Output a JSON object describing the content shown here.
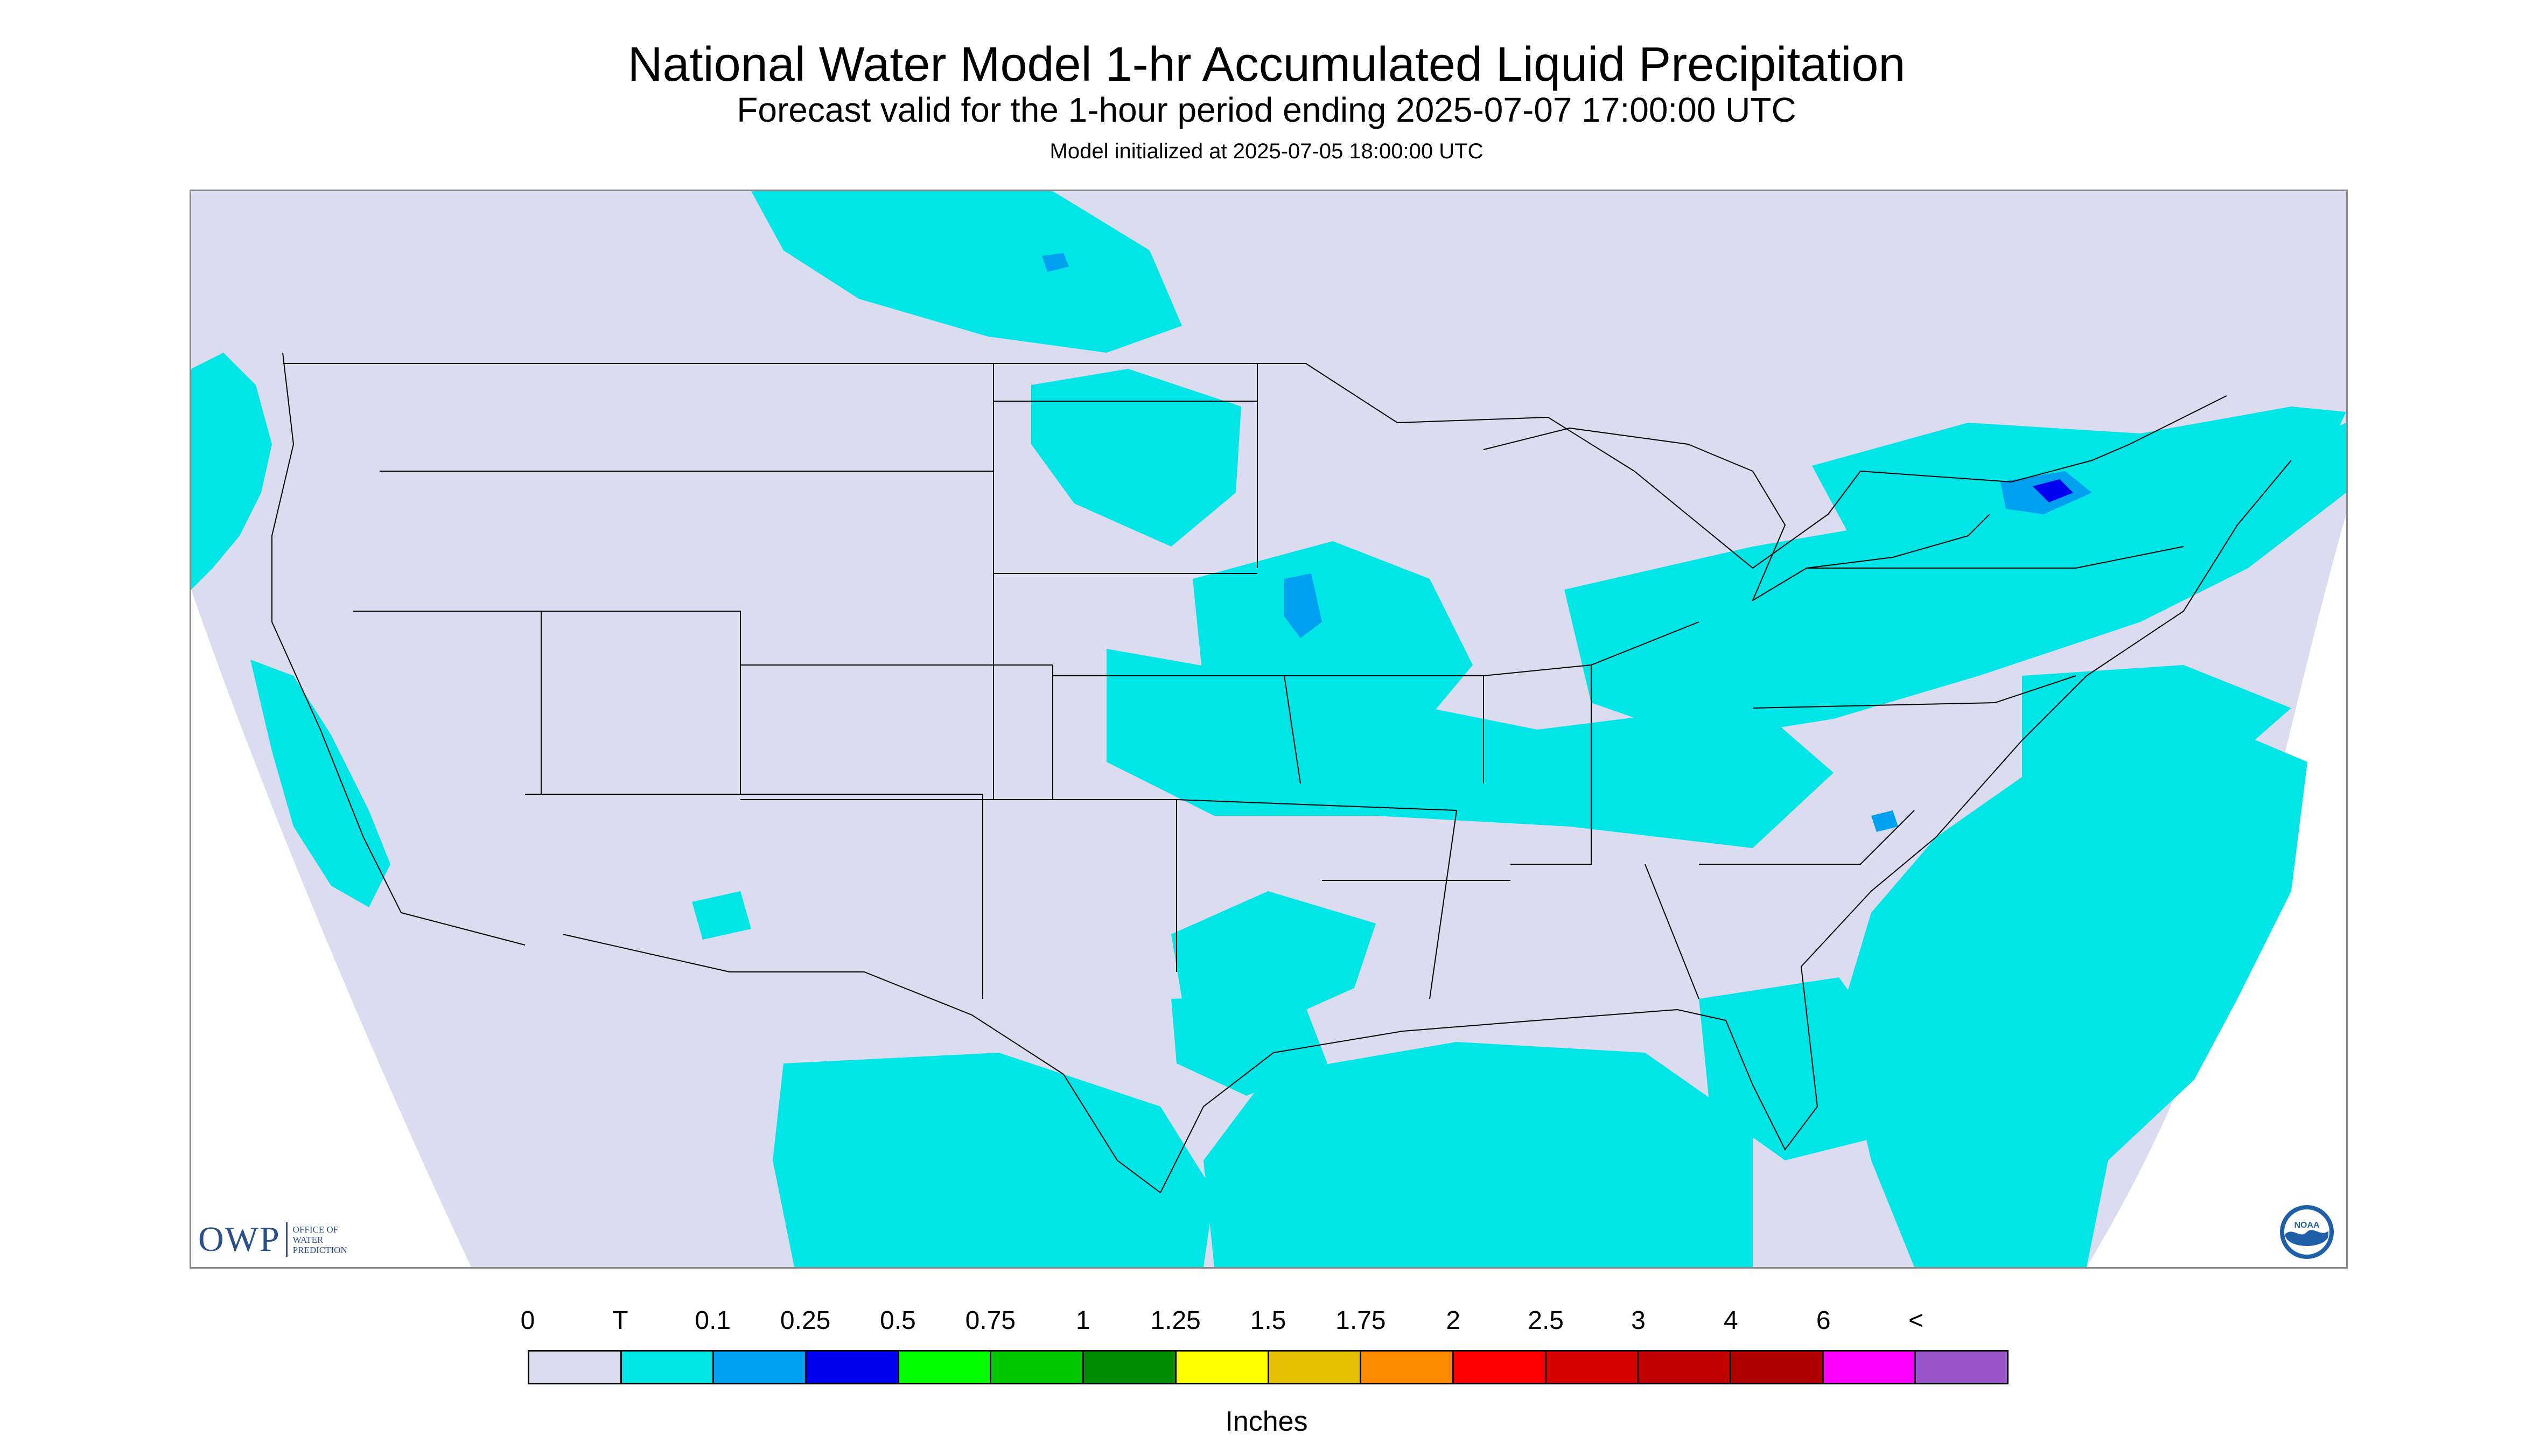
{
  "header": {
    "title": "National Water Model 1-hr Accumulated Liquid Precipitation",
    "subtitle": "Forecast valid for the 1-hour period ending 2025-07-07 17:00:00 UTC",
    "init_line": "Model initialized at 2025-07-05 18:00:00 UTC"
  },
  "logos": {
    "owp_text": "OWP",
    "owp_sub_1": "OFFICE OF",
    "owp_sub_2": "WATER",
    "owp_sub_3": "PREDICTION",
    "noaa_text": "NOAA"
  },
  "legend": {
    "labels": [
      "0",
      "T",
      "0.1",
      "0.25",
      "0.5",
      "0.75",
      "1",
      "1.25",
      "1.5",
      "1.75",
      "2",
      "2.5",
      "3",
      "4",
      "6",
      "<"
    ],
    "colors": [
      "#dcdcf0",
      "#00e6e6",
      "#00a0f0",
      "#0000f0",
      "#00ff00",
      "#00c800",
      "#008c00",
      "#ffff00",
      "#e6bf00",
      "#ff8c00",
      "#ff0000",
      "#d70000",
      "#c00000",
      "#b00000",
      "#ff00ff",
      "#9955c9"
    ],
    "units": "Inches"
  },
  "map_colors": {
    "domain_fill": "#dcdcf0",
    "precip_trace": "#00e6e6",
    "precip_light": "#00a0f0",
    "precip_moderate": "#0000f0",
    "boundary": "#000000"
  }
}
